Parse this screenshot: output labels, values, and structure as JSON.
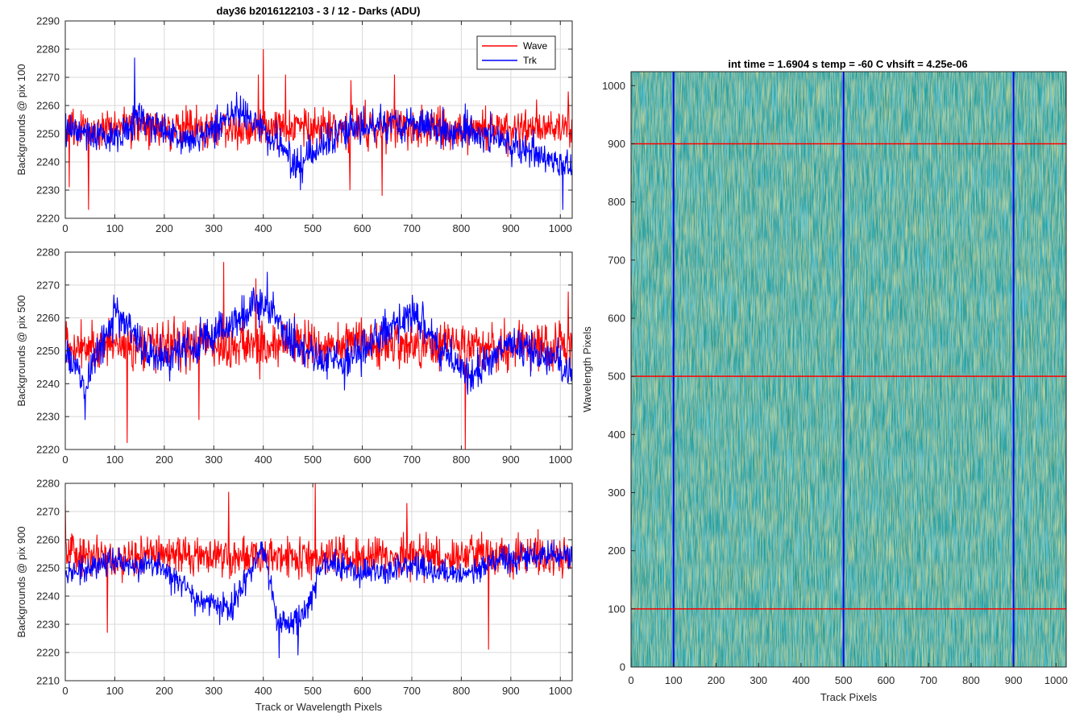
{
  "colors": {
    "wave": "#ff0000",
    "trk": "#0000ff",
    "grid": "#d9d9d9",
    "axes": "#262626",
    "heat_base": "#2a9f9a",
    "heat_hi": "#c8d34a",
    "heat_lo": "#1aa2c8"
  },
  "figure_title": "day36 b2016122103 - 3 / 12 - Darks (ADU)",
  "heatmap_title": "int time = 1.6904 s    temp = -60 C    vhsift = 4.25e-06",
  "chart_data": [
    {
      "type": "line",
      "ylabel": "Backgrounds @ pix 100",
      "xlabel": "",
      "xlim": [
        0,
        1024
      ],
      "ylim": [
        2220,
        2290
      ],
      "xticks": [
        0,
        100,
        200,
        300,
        400,
        500,
        600,
        700,
        800,
        900,
        1000
      ],
      "yticks": [
        2220,
        2230,
        2240,
        2250,
        2260,
        2270,
        2280,
        2290
      ],
      "legend": {
        "location": "top-right",
        "entries": [
          "Wave",
          "Trk"
        ]
      },
      "series": [
        {
          "name": "Wave",
          "color": "#ff0000",
          "mean": 2252,
          "noise": 6,
          "spikes": [
            [
              8,
              2231
            ],
            [
              47,
              2223
            ],
            [
              400,
              2280
            ],
            [
              390,
              2271
            ],
            [
              445,
              2271
            ],
            [
              665,
              2271
            ],
            [
              577,
              2269
            ],
            [
              575,
              2230
            ],
            [
              640,
              2228
            ],
            [
              1016,
              2265
            ]
          ]
        },
        {
          "name": "Trk",
          "color": "#0000ff",
          "mean": 2250,
          "noise": 5,
          "trend": [
            [
              0,
              2252
            ],
            [
              100,
              2248
            ],
            [
              150,
              2256
            ],
            [
              250,
              2247
            ],
            [
              350,
              2258
            ],
            [
              430,
              2247
            ],
            [
              470,
              2238
            ],
            [
              550,
              2251
            ],
            [
              700,
              2254
            ],
            [
              850,
              2249
            ],
            [
              950,
              2243
            ],
            [
              1024,
              2237
            ]
          ],
          "spikes": [
            [
              140,
              2277
            ],
            [
              475,
              2230
            ],
            [
              1005,
              2223
            ]
          ]
        }
      ]
    },
    {
      "type": "line",
      "ylabel": "Backgrounds @ pix 500",
      "xlabel": "",
      "xlim": [
        0,
        1024
      ],
      "ylim": [
        2220,
        2280
      ],
      "xticks": [
        0,
        100,
        200,
        300,
        400,
        500,
        600,
        700,
        800,
        900,
        1000
      ],
      "yticks": [
        2220,
        2230,
        2240,
        2250,
        2260,
        2270,
        2280
      ],
      "series": [
        {
          "name": "Wave",
          "color": "#ff0000",
          "mean": 2252,
          "noise": 6,
          "spikes": [
            [
              125,
              2222
            ],
            [
              320,
              2277
            ],
            [
              385,
              2272
            ],
            [
              808,
              2220
            ],
            [
              270,
              2229
            ],
            [
              1016,
              2268
            ]
          ]
        },
        {
          "name": "Trk",
          "color": "#0000ff",
          "mean": 2253,
          "noise": 5,
          "trend": [
            [
              0,
              2250
            ],
            [
              40,
              2240
            ],
            [
              100,
              2262
            ],
            [
              180,
              2248
            ],
            [
              260,
              2252
            ],
            [
              330,
              2258
            ],
            [
              400,
              2265
            ],
            [
              470,
              2250
            ],
            [
              560,
              2246
            ],
            [
              700,
              2262
            ],
            [
              760,
              2250
            ],
            [
              820,
              2243
            ],
            [
              900,
              2252
            ],
            [
              1024,
              2244
            ]
          ],
          "spikes": [
            [
              408,
              2274
            ],
            [
              40,
              2229
            ]
          ]
        }
      ]
    },
    {
      "type": "line",
      "ylabel": "Backgrounds @ pix 900",
      "xlabel": "Track or Wavelength Pixels",
      "xlim": [
        0,
        1024
      ],
      "ylim": [
        2210,
        2280
      ],
      "xticks": [
        0,
        100,
        200,
        300,
        400,
        500,
        600,
        700,
        800,
        900,
        1000
      ],
      "yticks": [
        2210,
        2220,
        2230,
        2240,
        2250,
        2260,
        2270,
        2280
      ],
      "series": [
        {
          "name": "Wave",
          "color": "#ff0000",
          "mean": 2254,
          "noise": 6,
          "spikes": [
            [
              505,
              2280
            ],
            [
              855,
              2221
            ],
            [
              0,
              2274
            ],
            [
              330,
              2277
            ],
            [
              690,
              2273
            ],
            [
              85,
              2227
            ]
          ]
        },
        {
          "name": "Trk",
          "color": "#0000ff",
          "mean": 2250,
          "noise": 4,
          "trend": [
            [
              0,
              2248
            ],
            [
              100,
              2252
            ],
            [
              200,
              2250
            ],
            [
              260,
              2240
            ],
            [
              330,
              2235
            ],
            [
              400,
              2257
            ],
            [
              430,
              2230
            ],
            [
              480,
              2232
            ],
            [
              520,
              2252
            ],
            [
              600,
              2248
            ],
            [
              700,
              2250
            ],
            [
              800,
              2248
            ],
            [
              900,
              2254
            ],
            [
              1024,
              2255
            ]
          ],
          "spikes": [
            [
              432,
              2218
            ],
            [
              470,
              2219
            ]
          ]
        }
      ]
    },
    {
      "type": "heatmap",
      "xlabel": "Track Pixels",
      "ylabel": "Wavelength Pixels",
      "xlim": [
        0,
        1024
      ],
      "ylim": [
        0,
        1024
      ],
      "xticks": [
        0,
        100,
        200,
        300,
        400,
        500,
        600,
        700,
        800,
        900,
        1000
      ],
      "yticks": [
        0,
        100,
        200,
        300,
        400,
        500,
        600,
        700,
        800,
        900,
        1000
      ],
      "vlines": [
        100,
        500,
        900
      ],
      "hlines": [
        100,
        500,
        900
      ],
      "vline_color": "#0000ff",
      "hline_color": "#ff0000"
    }
  ]
}
